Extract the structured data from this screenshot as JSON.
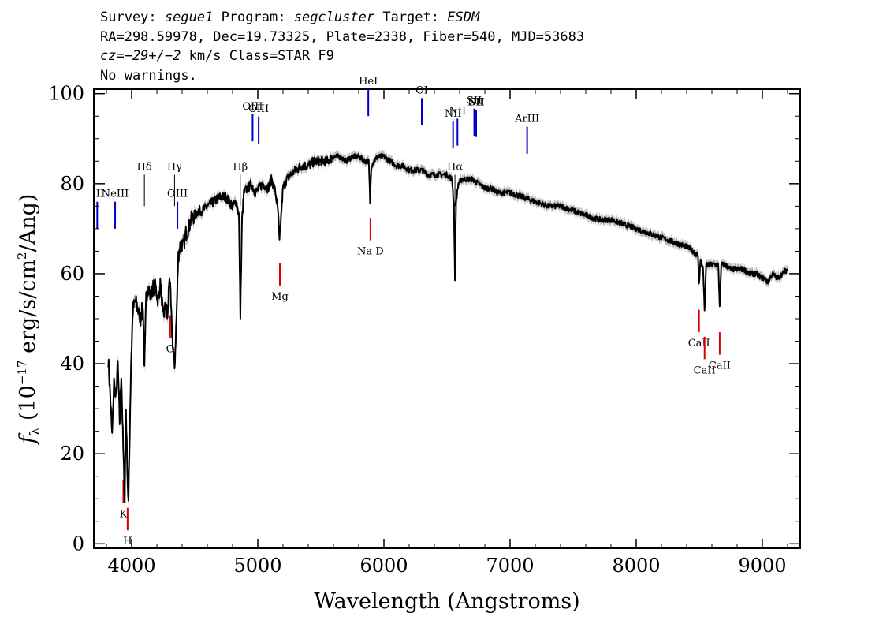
{
  "header": {
    "line1": {
      "survey_label": "Survey:",
      "survey": "segue1",
      "program_label": "Program:",
      "program": "segcluster",
      "target_label": "Target:",
      "target": "ESDM"
    },
    "line2": "RA=298.59978, Dec=19.73325, Plate=2338, Fiber=540, MJD=53683",
    "line3": {
      "cz": "cz=−29+/−2",
      "rest": " km/s Class=STAR F9"
    },
    "line4": "No warnings."
  },
  "chart_data": {
    "type": "line",
    "xlabel": "Wavelength (Angstroms)",
    "ylabel_parts": {
      "sym": "f",
      "sub": "λ",
      "open": " (10",
      "exp1": "−17",
      "mid": " erg/s/cm",
      "exp2": "2",
      "close": "/Ang)"
    },
    "xlim": [
      3700,
      9300
    ],
    "ylim": [
      -1,
      101
    ],
    "xticks": [
      4000,
      5000,
      6000,
      7000,
      8000,
      9000
    ],
    "yticks": [
      0,
      20,
      40,
      60,
      80,
      100
    ],
    "grid": false,
    "colors": {
      "spectrum": "#000000",
      "error": "#b8b8b8",
      "emission": "#0000cc",
      "absorption": "#dd0000",
      "label_tick": "#000000"
    },
    "series": [
      {
        "x": [
          3815,
          3830,
          3845,
          3860,
          3875,
          3890,
          3905,
          3918,
          3933,
          3945,
          3955,
          3968,
          3975,
          3985,
          3995,
          4010,
          4030,
          4050,
          4070,
          4090,
          4101,
          4115,
          4130,
          4150,
          4170,
          4190,
          4210,
          4230,
          4250,
          4270,
          4285,
          4300,
          4320,
          4340,
          4355,
          4370,
          4390,
          4410,
          4430,
          4450,
          4470,
          4500,
          4530,
          4560,
          4600,
          4650,
          4700,
          4750,
          4800,
          4830,
          4850,
          4862,
          4875,
          4890,
          4920,
          4950,
          4980,
          5010,
          5040,
          5080,
          5110,
          5140,
          5160,
          5172,
          5185,
          5200,
          5230,
          5260,
          5300,
          5350,
          5400,
          5450,
          5500,
          5550,
          5600,
          5650,
          5700,
          5750,
          5800,
          5850,
          5880,
          5890,
          5900,
          5920,
          5950,
          6000,
          6050,
          6100,
          6150,
          6200,
          6250,
          6300,
          6350,
          6400,
          6450,
          6500,
          6540,
          6555,
          6563,
          6572,
          6590,
          6620,
          6650,
          6700,
          6750,
          6800,
          6850,
          6900,
          6950,
          7000,
          7100,
          7200,
          7300,
          7400,
          7500,
          7600,
          7700,
          7800,
          7900,
          8000,
          8100,
          8200,
          8300,
          8400,
          8450,
          8490,
          8498,
          8510,
          8530,
          8542,
          8555,
          8580,
          8620,
          8650,
          8662,
          8675,
          8700,
          8750,
          8800,
          8850,
          8900,
          8950,
          9000,
          9020,
          9040,
          9080,
          9120,
          9160,
          9200
        ],
        "y": [
          41,
          33,
          24,
          36,
          32,
          40,
          27,
          38,
          21,
          10,
          30,
          14,
          9,
          25,
          40,
          52,
          54,
          52,
          50,
          53,
          38,
          55,
          57,
          55,
          57,
          57,
          54,
          58,
          50,
          53,
          50,
          60,
          47,
          39,
          50,
          64,
          67,
          66,
          69,
          70,
          72,
          73,
          74,
          74,
          75,
          76,
          77,
          77,
          75,
          76,
          73,
          51,
          72,
          78,
          79,
          80,
          78,
          79,
          80,
          79,
          81,
          78,
          74,
          67,
          73,
          79,
          81,
          82,
          83,
          84,
          84,
          85,
          85,
          85,
          86,
          86,
          85,
          86,
          86,
          85,
          85,
          76,
          84,
          85,
          86,
          86,
          85,
          84,
          84,
          83,
          83,
          83,
          82,
          82,
          82,
          82,
          81,
          75,
          58,
          76,
          80,
          81,
          81,
          81,
          80,
          79,
          79,
          78,
          78,
          78,
          77,
          76,
          75,
          75,
          74,
          73,
          72,
          72,
          71,
          70,
          69,
          68,
          67,
          66,
          65,
          64,
          58,
          63,
          61,
          52,
          62,
          62,
          62,
          62,
          53,
          62,
          62,
          61,
          61,
          61,
          60,
          60,
          59,
          59,
          58,
          60,
          59,
          60,
          61
        ]
      }
    ],
    "emission_lines": [
      {
        "label": "II",
        "x": 3727
      },
      {
        "label": "NeIII",
        "x": 3869
      },
      {
        "label": "HeI",
        "x": 5876
      },
      {
        "label": "OI",
        "x": 6300
      },
      {
        "label": "NII",
        "x": 6548
      },
      {
        "label": "NII",
        "x": 6583
      },
      {
        "label": "SII",
        "x": 6716
      },
      {
        "label": "SII",
        "x": 6731
      },
      {
        "label": "NII",
        "x": 6731
      },
      {
        "label": "ArIII",
        "x": 7135
      },
      {
        "label": "OIII",
        "x": 4363
      },
      {
        "label": "OIII",
        "x": 4959
      },
      {
        "label": "OIII",
        "x": 5007
      }
    ],
    "balmer_lines": [
      {
        "label": "Hδ",
        "x": 4101
      },
      {
        "label": "Hγ",
        "x": 4340
      },
      {
        "label": "Hβ",
        "x": 4861
      },
      {
        "label": "Hα",
        "x": 6563
      }
    ],
    "absorption_lines": [
      {
        "label": "K",
        "x": 3934
      },
      {
        "label": "H",
        "x": 3968
      },
      {
        "label": "G",
        "x": 4305
      },
      {
        "label": "Mg",
        "x": 5175
      },
      {
        "label": "Na D",
        "x": 5893
      },
      {
        "label": "CaII",
        "x": 8498
      },
      {
        "label": "CaII",
        "x": 8542
      },
      {
        "label": "CaII",
        "x": 8662
      }
    ]
  }
}
